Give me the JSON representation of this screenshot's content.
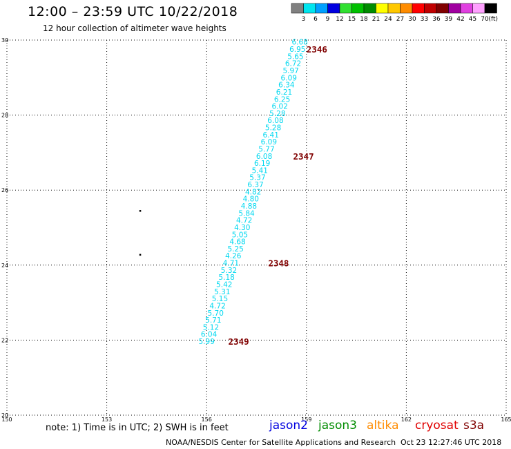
{
  "header": {
    "title": "12:00 – 23:59 UTC 10/22/2018",
    "subtitle": "12 hour collection of altimeter wave heights"
  },
  "legend": {
    "unit": "(ft)",
    "entries": [
      {
        "label": "3",
        "color": "#808080"
      },
      {
        "label": "6",
        "color": "#00e5ee"
      },
      {
        "label": "9",
        "color": "#00a0ff"
      },
      {
        "label": "12",
        "color": "#0000e0"
      },
      {
        "label": "15",
        "color": "#30e030"
      },
      {
        "label": "18",
        "color": "#00c000"
      },
      {
        "label": "21",
        "color": "#008c00"
      },
      {
        "label": "24",
        "color": "#ffff00"
      },
      {
        "label": "27",
        "color": "#ffc800"
      },
      {
        "label": "30",
        "color": "#ff8c00"
      },
      {
        "label": "33",
        "color": "#ff0000"
      },
      {
        "label": "36",
        "color": "#c00000"
      },
      {
        "label": "39",
        "color": "#800000"
      },
      {
        "label": "42",
        "color": "#a000a0"
      },
      {
        "label": "45",
        "color": "#e040e0"
      },
      {
        "label": "70",
        "color": "#ffa0ff"
      },
      {
        "label": "",
        "color": "#000000"
      }
    ]
  },
  "footer": {
    "note": "note:  1) Time is in UTC;  2) SWH is in feet",
    "satellites": [
      {
        "name": "jason2",
        "color": "#0000e0"
      },
      {
        "name": "jason3",
        "color": "#008c00"
      },
      {
        "name": "altika",
        "color": "#ff8c00"
      },
      {
        "name": "cryosat",
        "color": "#e00000"
      },
      {
        "name": "s3a",
        "color": "#800000"
      }
    ],
    "credit": "NOAA/NESDIS Center for Satellite Applications and Research",
    "timestamp": "Oct 23 12:27:46 UTC 2018"
  },
  "chart_data": {
    "type": "scatter",
    "title": "12:00 – 23:59 UTC 10/22/2018",
    "subtitle": "12 hour collection of altimeter wave heights",
    "xlabel": "",
    "ylabel": "",
    "xlim": [
      150,
      165
    ],
    "ylim": [
      20,
      30
    ],
    "x_ticks": [
      150,
      153,
      156,
      159,
      162,
      165
    ],
    "y_ticks": [
      20,
      22,
      24,
      26,
      28,
      30
    ],
    "y_tick_labels": [
      "20",
      "22",
      "24",
      "26",
      "28",
      "30"
    ],
    "grid": true,
    "series": [
      {
        "satellite": "jason3",
        "color": "#00d8f0",
        "points": [
          {
            "x": 158.8,
            "y": 29.95,
            "swh": "6.68"
          },
          {
            "x": 158.73,
            "y": 29.76,
            "swh": "6.95"
          },
          {
            "x": 158.67,
            "y": 29.57,
            "swh": "5.65"
          },
          {
            "x": 158.6,
            "y": 29.38,
            "swh": "6.72"
          },
          {
            "x": 158.53,
            "y": 29.19,
            "swh": "5.97"
          },
          {
            "x": 158.47,
            "y": 29.0,
            "swh": "6.09"
          },
          {
            "x": 158.4,
            "y": 28.81,
            "swh": "6.34"
          },
          {
            "x": 158.33,
            "y": 28.62,
            "swh": "6.21"
          },
          {
            "x": 158.27,
            "y": 28.43,
            "swh": "6.25"
          },
          {
            "x": 158.2,
            "y": 28.24,
            "swh": "6.02"
          },
          {
            "x": 158.13,
            "y": 28.05,
            "swh": "5.28"
          },
          {
            "x": 158.07,
            "y": 27.86,
            "swh": "6.08"
          },
          {
            "x": 158.0,
            "y": 27.67,
            "swh": "5.28"
          },
          {
            "x": 157.93,
            "y": 27.48,
            "swh": "6.41"
          },
          {
            "x": 157.87,
            "y": 27.29,
            "swh": "6.09"
          },
          {
            "x": 157.8,
            "y": 27.1,
            "swh": "5.77"
          },
          {
            "x": 157.73,
            "y": 26.91,
            "swh": "6.08"
          },
          {
            "x": 157.67,
            "y": 26.72,
            "swh": "6.19"
          },
          {
            "x": 157.6,
            "y": 26.53,
            "swh": "5.41"
          },
          {
            "x": 157.53,
            "y": 26.34,
            "swh": "5.37"
          },
          {
            "x": 157.47,
            "y": 26.15,
            "swh": "6.37"
          },
          {
            "x": 157.4,
            "y": 25.96,
            "swh": "4.82"
          },
          {
            "x": 157.33,
            "y": 25.77,
            "swh": "4.80"
          },
          {
            "x": 157.27,
            "y": 25.58,
            "swh": "4.88"
          },
          {
            "x": 157.2,
            "y": 25.39,
            "swh": "5.84"
          },
          {
            "x": 157.13,
            "y": 25.2,
            "swh": "4.72"
          },
          {
            "x": 157.07,
            "y": 25.01,
            "swh": "4.30"
          },
          {
            "x": 157.0,
            "y": 24.82,
            "swh": "5.05"
          },
          {
            "x": 156.93,
            "y": 24.63,
            "swh": "4.68"
          },
          {
            "x": 156.87,
            "y": 24.44,
            "swh": "5.25"
          },
          {
            "x": 156.8,
            "y": 24.25,
            "swh": "4.26"
          },
          {
            "x": 156.73,
            "y": 24.06,
            "swh": "4.71"
          },
          {
            "x": 156.67,
            "y": 23.87,
            "swh": "5.32"
          },
          {
            "x": 156.6,
            "y": 23.68,
            "swh": "5.18"
          },
          {
            "x": 156.53,
            "y": 23.49,
            "swh": "5.42"
          },
          {
            "x": 156.47,
            "y": 23.3,
            "swh": "5.31"
          },
          {
            "x": 156.4,
            "y": 23.11,
            "swh": "5.15"
          },
          {
            "x": 156.33,
            "y": 22.92,
            "swh": "4.72"
          },
          {
            "x": 156.27,
            "y": 22.73,
            "swh": "5.70"
          },
          {
            "x": 156.2,
            "y": 22.54,
            "swh": "5.71"
          },
          {
            "x": 156.13,
            "y": 22.35,
            "swh": "5.12"
          },
          {
            "x": 156.07,
            "y": 22.16,
            "swh": "6.04"
          },
          {
            "x": 156.0,
            "y": 21.97,
            "swh": "5.99"
          }
        ]
      }
    ],
    "time_labels": [
      {
        "text": "2346",
        "x": 159.0,
        "y": 29.76
      },
      {
        "text": "2347",
        "x": 158.6,
        "y": 26.91
      },
      {
        "text": "2348",
        "x": 157.85,
        "y": 24.06
      },
      {
        "text": "2349",
        "x": 156.65,
        "y": 21.97
      }
    ],
    "time_label_color": "#800000",
    "markers": [
      {
        "x": 154.0,
        "y": 25.45
      },
      {
        "x": 154.0,
        "y": 24.28
      }
    ]
  }
}
